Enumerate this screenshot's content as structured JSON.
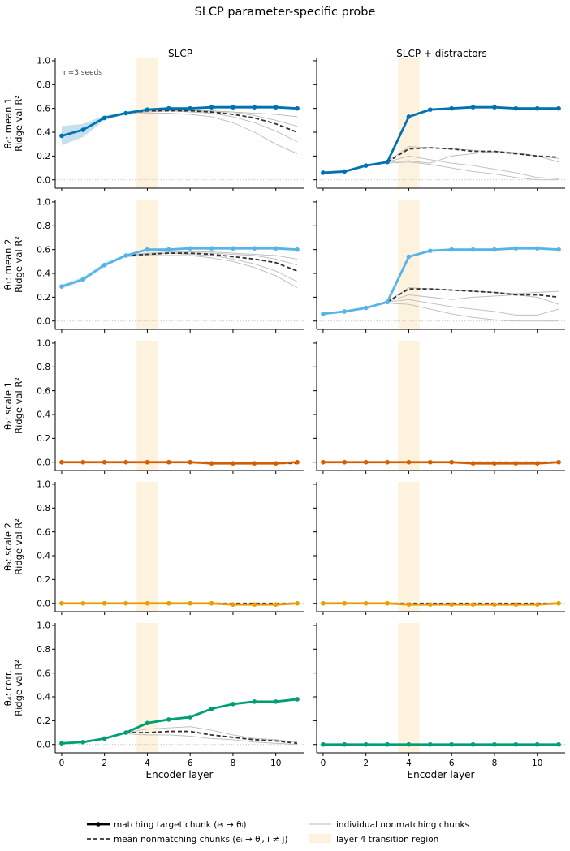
{
  "figure": {
    "title": "SLCP parameter-specific probe",
    "col_titles": [
      "SLCP",
      "SLCP + distractors"
    ],
    "xlabel": "Encoder layer",
    "annotation": "n=3 seeds",
    "row_labels": [
      {
        "param": "θ₀: mean 1",
        "metric": "Ridge val R²"
      },
      {
        "param": "θ₁: mean 2",
        "metric": "Ridge val R²"
      },
      {
        "param": "θ₂: scale 1",
        "metric": "Ridge val R²"
      },
      {
        "param": "θ₃: scale 2",
        "metric": "Ridge val R²"
      },
      {
        "param": "θ₄: corr.",
        "metric": "Ridge val R²"
      }
    ],
    "legend": [
      {
        "label": "matching target chunk (eᵢ → θᵢ)",
        "style": "thick-line-marker"
      },
      {
        "label": "individual nonmatching chunks",
        "style": "thin-gray"
      },
      {
        "label": "mean nonmatching chunks (eᵢ → θⱼ, i ≠ j)",
        "style": "dashed"
      },
      {
        "label": "layer 4 transition region",
        "style": "band"
      }
    ]
  },
  "chart_data": {
    "type": "line",
    "x": [
      0,
      1,
      2,
      3,
      4,
      5,
      6,
      7,
      8,
      9,
      10,
      11
    ],
    "xticks": [
      0,
      2,
      4,
      6,
      8,
      10
    ],
    "xlim": [
      -0.3,
      11.3
    ],
    "ylim": [
      -0.07,
      1.02
    ],
    "yticks": [
      "0.0",
      "0.2",
      "0.4",
      "0.6",
      "0.8",
      "1.0"
    ],
    "band": [
      3.5,
      4.5
    ],
    "colors": {
      "theta0": "#0072b2",
      "theta1": "#56b4e9",
      "theta2": "#d55e00",
      "theta3": "#e69f00",
      "theta4": "#009e73",
      "mean_nonmatching": "#333333",
      "individual": "#bbbbbb",
      "band": "#fdf2dd"
    },
    "panels": [
      {
        "row": 0,
        "col": 0,
        "color_key": "theta0",
        "match": [
          0.37,
          0.42,
          0.52,
          0.56,
          0.59,
          0.6,
          0.6,
          0.61,
          0.61,
          0.61,
          0.61,
          0.6
        ],
        "match_band": [
          [
            0.29,
            0.45
          ],
          [
            0.36,
            0.47
          ],
          [
            0.5,
            0.54
          ],
          [
            0.55,
            0.57
          ],
          [
            0.58,
            0.6
          ],
          [
            0.59,
            0.61
          ],
          [
            0.59,
            0.61
          ],
          [
            0.6,
            0.62
          ],
          [
            0.6,
            0.62
          ],
          [
            0.6,
            0.62
          ],
          [
            0.6,
            0.62
          ],
          [
            0.59,
            0.61
          ]
        ],
        "mean": [
          null,
          null,
          null,
          0.56,
          0.58,
          0.58,
          0.58,
          0.57,
          0.55,
          0.52,
          0.47,
          0.4
        ],
        "individual": [
          [
            null,
            null,
            null,
            0.56,
            0.57,
            0.58,
            0.58,
            0.57,
            0.57,
            0.56,
            0.55,
            0.53
          ],
          [
            null,
            null,
            null,
            0.56,
            0.58,
            0.58,
            0.57,
            0.56,
            0.53,
            0.48,
            0.41,
            0.32
          ],
          [
            null,
            null,
            null,
            0.55,
            0.56,
            0.56,
            0.55,
            0.53,
            0.48,
            0.4,
            0.3,
            0.22
          ],
          [
            null,
            null,
            null,
            0.56,
            0.57,
            0.58,
            0.58,
            0.58,
            0.57,
            0.54,
            0.5,
            0.45
          ]
        ]
      },
      {
        "row": 0,
        "col": 1,
        "color_key": "theta0",
        "match": [
          0.06,
          0.07,
          0.12,
          0.15,
          0.53,
          0.59,
          0.6,
          0.61,
          0.61,
          0.6,
          0.6,
          0.6
        ],
        "match_band": [
          [
            0.05,
            0.07
          ],
          [
            0.06,
            0.08
          ],
          [
            0.11,
            0.13
          ],
          [
            0.14,
            0.16
          ],
          [
            0.52,
            0.54
          ],
          [
            0.58,
            0.6
          ],
          [
            0.59,
            0.61
          ],
          [
            0.6,
            0.62
          ],
          [
            0.6,
            0.62
          ],
          [
            0.59,
            0.61
          ],
          [
            0.59,
            0.61
          ],
          [
            0.59,
            0.61
          ]
        ],
        "mean": [
          null,
          null,
          null,
          0.15,
          0.26,
          0.27,
          0.26,
          0.24,
          0.24,
          0.22,
          0.2,
          0.19
        ],
        "individual": [
          [
            null,
            null,
            null,
            0.15,
            0.2,
            0.17,
            0.14,
            0.12,
            0.09,
            0.06,
            0.02,
            0.01
          ],
          [
            null,
            null,
            null,
            0.14,
            0.15,
            0.13,
            0.1,
            0.07,
            0.05,
            0.02,
            0.0,
            0.0
          ],
          [
            null,
            null,
            null,
            0.15,
            0.16,
            0.14,
            0.2,
            0.22,
            0.24,
            0.23,
            0.2,
            0.15
          ],
          [
            null,
            null,
            null,
            0.15,
            0.28,
            0.27,
            0.26,
            0.25,
            0.23,
            0.22,
            0.2,
            0.18
          ]
        ]
      },
      {
        "row": 1,
        "col": 0,
        "color_key": "theta1",
        "match": [
          0.29,
          0.35,
          0.47,
          0.55,
          0.6,
          0.6,
          0.61,
          0.61,
          0.61,
          0.61,
          0.61,
          0.6
        ],
        "match_band": [
          [
            0.27,
            0.31
          ],
          [
            0.33,
            0.37
          ],
          [
            0.45,
            0.49
          ],
          [
            0.54,
            0.56
          ],
          [
            0.59,
            0.61
          ],
          [
            0.59,
            0.61
          ],
          [
            0.6,
            0.62
          ],
          [
            0.6,
            0.62
          ],
          [
            0.6,
            0.62
          ],
          [
            0.6,
            0.62
          ],
          [
            0.6,
            0.62
          ],
          [
            0.59,
            0.61
          ]
        ],
        "mean": [
          null,
          null,
          null,
          0.55,
          0.56,
          0.57,
          0.57,
          0.56,
          0.54,
          0.52,
          0.49,
          0.42
        ],
        "individual": [
          [
            null,
            null,
            null,
            0.55,
            0.57,
            0.58,
            0.58,
            0.58,
            0.57,
            0.56,
            0.55,
            0.52
          ],
          [
            null,
            null,
            null,
            0.55,
            0.56,
            0.57,
            0.56,
            0.55,
            0.52,
            0.48,
            0.42,
            0.33
          ],
          [
            null,
            null,
            null,
            0.54,
            0.55,
            0.55,
            0.55,
            0.53,
            0.5,
            0.45,
            0.38,
            0.28
          ],
          [
            null,
            null,
            null,
            0.55,
            0.56,
            0.57,
            0.57,
            0.57,
            0.56,
            0.55,
            0.52,
            0.47
          ]
        ]
      },
      {
        "row": 1,
        "col": 1,
        "color_key": "theta1",
        "match": [
          0.06,
          0.08,
          0.11,
          0.16,
          0.54,
          0.59,
          0.6,
          0.6,
          0.6,
          0.61,
          0.61,
          0.6
        ],
        "match_band": [
          [
            0.05,
            0.07
          ],
          [
            0.07,
            0.09
          ],
          [
            0.1,
            0.12
          ],
          [
            0.15,
            0.17
          ],
          [
            0.53,
            0.55
          ],
          [
            0.58,
            0.6
          ],
          [
            0.59,
            0.61
          ],
          [
            0.59,
            0.61
          ],
          [
            0.59,
            0.61
          ],
          [
            0.6,
            0.62
          ],
          [
            0.6,
            0.62
          ],
          [
            0.59,
            0.61
          ]
        ],
        "mean": [
          null,
          null,
          null,
          0.16,
          0.27,
          0.27,
          0.26,
          0.25,
          0.24,
          0.22,
          0.22,
          0.2
        ],
        "individual": [
          [
            null,
            null,
            null,
            0.16,
            0.18,
            0.15,
            0.12,
            0.1,
            0.08,
            0.05,
            0.05,
            0.1
          ],
          [
            null,
            null,
            null,
            0.15,
            0.14,
            0.1,
            0.06,
            0.03,
            0.01,
            0.0,
            0.0,
            0.0
          ],
          [
            null,
            null,
            null,
            0.16,
            0.22,
            0.2,
            0.18,
            0.2,
            0.21,
            0.22,
            0.2,
            0.14
          ],
          [
            null,
            null,
            null,
            0.16,
            0.28,
            0.27,
            0.26,
            0.25,
            0.24,
            0.23,
            0.24,
            0.25
          ]
        ]
      },
      {
        "row": 2,
        "col": 0,
        "color_key": "theta2",
        "match": [
          0.0,
          0.0,
          0.0,
          0.0,
          0.0,
          0.0,
          0.0,
          -0.01,
          -0.01,
          -0.01,
          -0.01,
          0.0
        ],
        "mean": [
          null,
          null,
          null,
          0.0,
          0.0,
          0.0,
          0.0,
          0.0,
          -0.01,
          -0.01,
          -0.01,
          -0.01
        ],
        "individual": []
      },
      {
        "row": 2,
        "col": 1,
        "color_key": "theta2",
        "match": [
          0.0,
          0.0,
          0.0,
          0.0,
          0.0,
          0.0,
          0.0,
          -0.01,
          -0.01,
          -0.01,
          -0.01,
          0.0
        ],
        "mean": [
          null,
          null,
          null,
          0.0,
          0.0,
          0.0,
          0.0,
          0.0,
          0.0,
          0.0,
          0.0,
          0.0
        ],
        "individual": []
      },
      {
        "row": 3,
        "col": 0,
        "color_key": "theta3",
        "match": [
          0.0,
          0.0,
          0.0,
          0.0,
          0.0,
          0.0,
          0.0,
          0.0,
          -0.01,
          -0.01,
          -0.01,
          0.0
        ],
        "mean": [
          null,
          null,
          null,
          0.0,
          0.0,
          0.0,
          0.0,
          0.0,
          0.0,
          0.0,
          0.0,
          0.0
        ],
        "individual": []
      },
      {
        "row": 3,
        "col": 1,
        "color_key": "theta3",
        "match": [
          0.0,
          0.0,
          0.0,
          0.0,
          -0.01,
          -0.01,
          -0.01,
          -0.01,
          -0.01,
          -0.01,
          -0.01,
          0.0
        ],
        "mean": [
          null,
          null,
          null,
          0.0,
          0.0,
          0.0,
          0.0,
          0.0,
          0.0,
          0.0,
          0.0,
          0.0
        ],
        "individual": []
      },
      {
        "row": 4,
        "col": 0,
        "color_key": "theta4",
        "match": [
          0.01,
          0.02,
          0.05,
          0.1,
          0.18,
          0.21,
          0.23,
          0.3,
          0.34,
          0.36,
          0.36,
          0.38
        ],
        "match_band": [
          [
            0.0,
            0.02
          ],
          [
            0.01,
            0.03
          ],
          [
            0.04,
            0.06
          ],
          [
            0.09,
            0.11
          ],
          [
            0.17,
            0.19
          ],
          [
            0.2,
            0.22
          ],
          [
            0.22,
            0.24
          ],
          [
            0.29,
            0.31
          ],
          [
            0.33,
            0.35
          ],
          [
            0.35,
            0.37
          ],
          [
            0.35,
            0.37
          ],
          [
            0.37,
            0.39
          ]
        ],
        "mean": [
          null,
          null,
          null,
          0.1,
          0.1,
          0.11,
          0.11,
          0.08,
          0.06,
          0.04,
          0.03,
          0.01
        ],
        "individual": [
          [
            null,
            null,
            null,
            0.1,
            0.13,
            0.14,
            0.15,
            0.12,
            0.08,
            0.05,
            0.04,
            0.02
          ],
          [
            null,
            null,
            null,
            0.09,
            0.08,
            0.08,
            0.07,
            0.05,
            0.04,
            0.02,
            0.01,
            0.0
          ]
        ]
      },
      {
        "row": 4,
        "col": 1,
        "color_key": "theta4",
        "match": [
          0.0,
          0.0,
          0.0,
          0.0,
          0.0,
          0.0,
          0.0,
          0.0,
          0.0,
          0.0,
          0.0,
          0.0
        ],
        "mean": [
          null,
          null,
          null,
          0.0,
          0.0,
          0.0,
          0.0,
          0.0,
          0.0,
          0.0,
          0.0,
          0.0
        ],
        "individual": []
      }
    ]
  }
}
